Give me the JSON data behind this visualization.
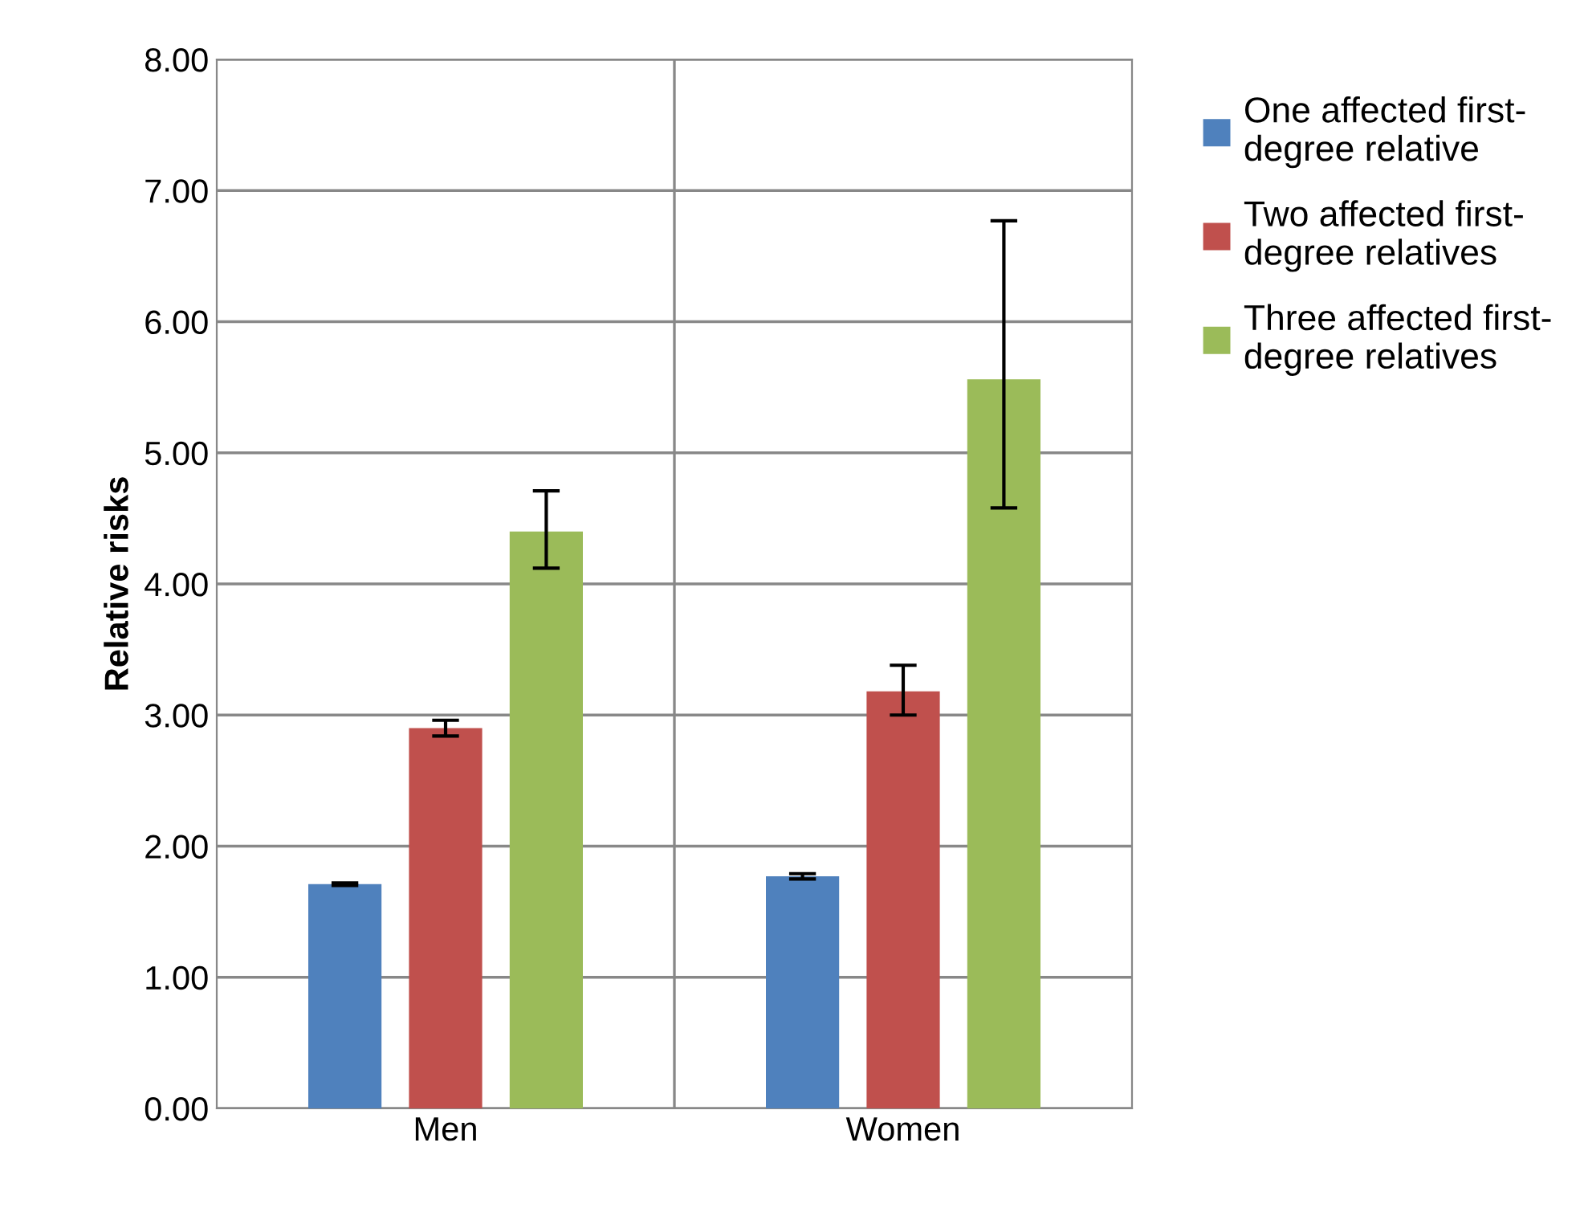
{
  "chart_data": {
    "type": "bar",
    "ylabel": "Relative risks",
    "categories": [
      "Men",
      "Women"
    ],
    "series": [
      {
        "name": "One affected first-degree relative",
        "color": "#4f81bd",
        "values": [
          1.71,
          1.77
        ],
        "errors": [
          [
            1.7,
            1.72
          ],
          [
            1.75,
            1.79
          ]
        ]
      },
      {
        "name": "Two affected first-degree relatives",
        "color": "#c0504d",
        "values": [
          2.9,
          3.18
        ],
        "errors": [
          [
            2.84,
            2.96
          ],
          [
            3.0,
            3.38
          ]
        ]
      },
      {
        "name": "Three affected first-degree relatives",
        "color": "#9bbb59",
        "values": [
          4.4,
          5.56
        ],
        "errors": [
          [
            4.12,
            4.71
          ],
          [
            4.58,
            6.77
          ]
        ]
      }
    ],
    "ylim": [
      0,
      8
    ],
    "yticks": [
      {
        "value": 0,
        "label": "0.00"
      },
      {
        "value": 1,
        "label": "1.00"
      },
      {
        "value": 2,
        "label": "2.00"
      },
      {
        "value": 3,
        "label": "3.00"
      },
      {
        "value": 4,
        "label": "4.00"
      },
      {
        "value": 5,
        "label": "5.00"
      },
      {
        "value": 6,
        "label": "6.00"
      },
      {
        "value": 7,
        "label": "7.00"
      },
      {
        "value": 8,
        "label": "8.00"
      }
    ],
    "grid": true,
    "legend": "right"
  }
}
